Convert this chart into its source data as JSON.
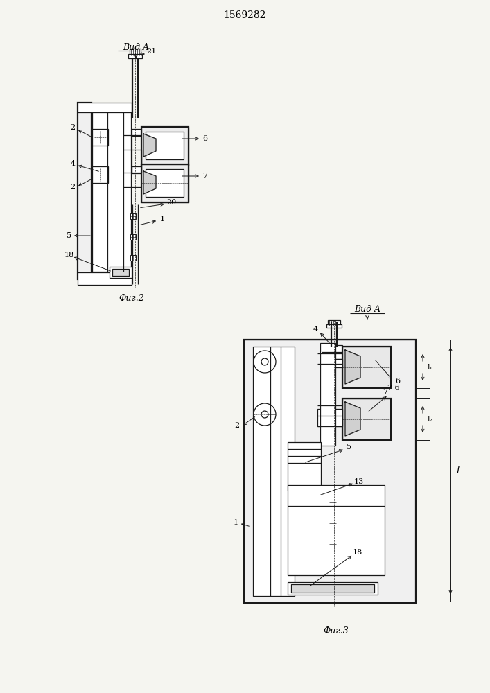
{
  "title": "1569282",
  "fig2_label": "Фиг.2",
  "fig3_label": "Фиг.3",
  "vid_a_label": "Вид A",
  "background_color": "#f5f5f0",
  "line_color": "#1a1a1a",
  "lw": 0.9,
  "lw2": 1.6,
  "lw3": 0.5
}
